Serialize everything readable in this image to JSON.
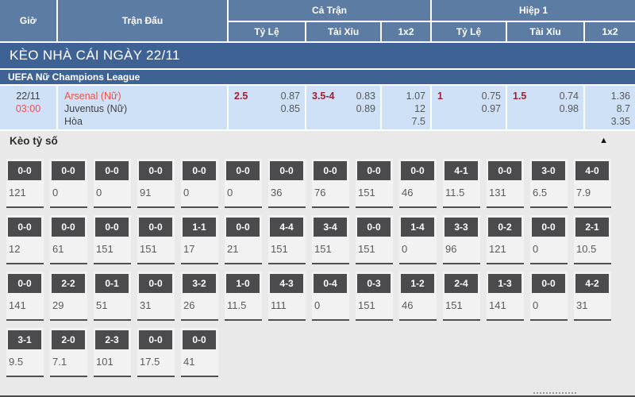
{
  "table_header": {
    "col_time": "Giờ",
    "col_match": "Trận Đấu",
    "group_full": "Cả Trận",
    "group_half": "Hiệp 1",
    "sub_handicap": "Tỷ Lệ",
    "sub_ou": "Tài Xỉu",
    "sub_1x2": "1x2"
  },
  "banner": {
    "title": "KÈO NHÀ CÁI NGÀY 22/11"
  },
  "league": {
    "name": "UEFA Nữ Champions League"
  },
  "match": {
    "date": "22/11",
    "time": "03:00",
    "home": "Arsenal (Nữ)",
    "away": "Juventus (Nữ)",
    "draw_label": "Hòa",
    "full": {
      "handicap": {
        "line": "2.5",
        "over": "0.87",
        "under": "0.85"
      },
      "ou": {
        "line": "3.5-4",
        "over": "0.83",
        "under": "0.89"
      },
      "x12": {
        "home": "1.07",
        "away": "12",
        "draw": "7.5"
      }
    },
    "half": {
      "handicap": {
        "line": "1",
        "over": "0.75",
        "under": "0.97"
      },
      "ou": {
        "line": "1.5",
        "over": "0.74",
        "under": "0.98"
      },
      "x12": {
        "home": "1.36",
        "away": "8.7",
        "draw": "3.35"
      }
    }
  },
  "score_section": {
    "title": "Kèo tỷ số",
    "collapse_icon": "▲",
    "rows": [
      [
        {
          "score": "0-0",
          "odds": "121"
        },
        {
          "score": "0-0",
          "odds": "0"
        },
        {
          "score": "0-0",
          "odds": "0"
        },
        {
          "score": "0-0",
          "odds": "91"
        },
        {
          "score": "0-0",
          "odds": "0"
        },
        {
          "score": "0-0",
          "odds": "0"
        },
        {
          "score": "0-0",
          "odds": "36"
        },
        {
          "score": "0-0",
          "odds": "76"
        },
        {
          "score": "0-0",
          "odds": "151"
        },
        {
          "score": "0-0",
          "odds": "46"
        },
        {
          "score": "4-1",
          "odds": "11.5"
        },
        {
          "score": "0-0",
          "odds": "131"
        },
        {
          "score": "3-0",
          "odds": "6.5"
        },
        {
          "score": "4-0",
          "odds": "7.9"
        }
      ],
      [
        {
          "score": "0-0",
          "odds": "12"
        },
        {
          "score": "0-0",
          "odds": "61"
        },
        {
          "score": "0-0",
          "odds": "151"
        },
        {
          "score": "0-0",
          "odds": "151"
        },
        {
          "score": "1-1",
          "odds": "17"
        },
        {
          "score": "0-0",
          "odds": "21"
        },
        {
          "score": "4-4",
          "odds": "151"
        },
        {
          "score": "3-4",
          "odds": "151"
        },
        {
          "score": "0-0",
          "odds": "151"
        },
        {
          "score": "1-4",
          "odds": "0"
        },
        {
          "score": "3-3",
          "odds": "96"
        },
        {
          "score": "0-2",
          "odds": "121"
        },
        {
          "score": "0-0",
          "odds": "0"
        },
        {
          "score": "2-1",
          "odds": "10.5"
        }
      ],
      [
        {
          "score": "0-0",
          "odds": "141"
        },
        {
          "score": "2-2",
          "odds": "29"
        },
        {
          "score": "0-1",
          "odds": "51"
        },
        {
          "score": "0-0",
          "odds": "31"
        },
        {
          "score": "3-2",
          "odds": "26"
        },
        {
          "score": "1-0",
          "odds": "11.5"
        },
        {
          "score": "4-3",
          "odds": "111"
        },
        {
          "score": "0-4",
          "odds": "0"
        },
        {
          "score": "0-3",
          "odds": "151"
        },
        {
          "score": "1-2",
          "odds": "46"
        },
        {
          "score": "2-4",
          "odds": "151"
        },
        {
          "score": "1-3",
          "odds": "141"
        },
        {
          "score": "0-0",
          "odds": "0"
        },
        {
          "score": "4-2",
          "odds": "31"
        }
      ],
      [
        {
          "score": "3-1",
          "odds": "9.5"
        },
        {
          "score": "2-0",
          "odds": "7.1"
        },
        {
          "score": "2-3",
          "odds": "101"
        },
        {
          "score": "0-0",
          "odds": "17.5"
        },
        {
          "score": "0-0",
          "odds": "41"
        }
      ]
    ]
  },
  "colors": {
    "header_blue": "#5d7ca4",
    "dark_blue": "#3d6293",
    "row_light_blue": "#cfe1f6",
    "handicap_maroon": "#9e2133",
    "hot_red": "#f14f4f",
    "team_red": "#e8534a",
    "odds_gray": "#54585b",
    "score_box_dark": "#4b4b4d",
    "section_gray": "#e9e9e9"
  }
}
